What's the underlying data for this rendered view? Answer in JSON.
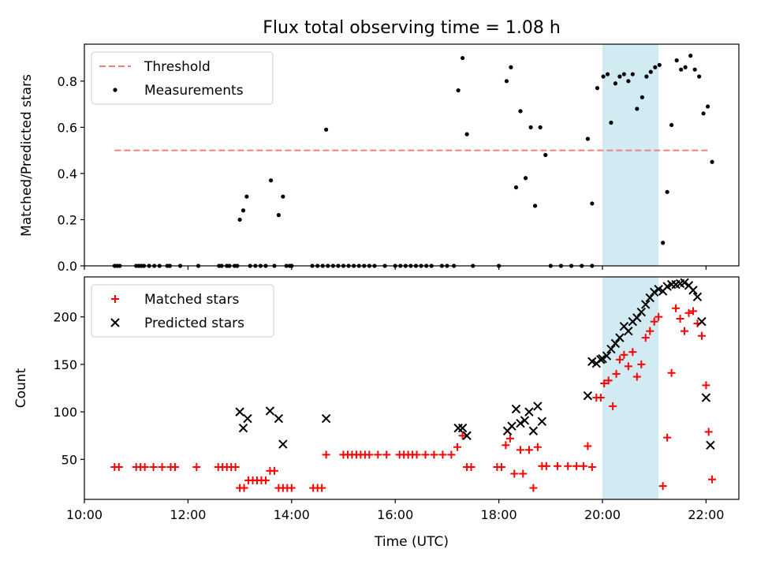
{
  "title": "Flux total observing time = 1.08 h",
  "xlabel": "Time (UTC)",
  "xticks": [
    "10:00",
    "12:00",
    "14:00",
    "16:00",
    "18:00",
    "20:00",
    "22:00"
  ],
  "colors": {
    "threshold": "#f08080",
    "measurement": "#000000",
    "matched": "#ff0000",
    "predicted": "#000000",
    "highlight": "#add8e6"
  },
  "chart_data": [
    {
      "type": "scatter",
      "ylabel": "Matched/Predicted stars",
      "ylim": [
        0,
        0.96
      ],
      "yticks": [
        "0.0",
        "0.2",
        "0.4",
        "0.6",
        "0.8"
      ],
      "highlight_span": [
        "20:00",
        "21:05"
      ],
      "legend": {
        "placement": "top-left",
        "entries": [
          "Threshold",
          "Measurements"
        ]
      },
      "threshold": {
        "name": "Threshold",
        "value": 0.5,
        "x_range": [
          "10:35",
          "22:03"
        ]
      },
      "series": [
        {
          "name": "Measurements",
          "points": [
            [
              "10:35",
              0
            ],
            [
              "10:38",
              0
            ],
            [
              "10:41",
              0
            ],
            [
              "11:00",
              0
            ],
            [
              "11:03",
              0
            ],
            [
              "11:06",
              0
            ],
            [
              "11:09",
              0
            ],
            [
              "11:15",
              0
            ],
            [
              "11:21",
              0
            ],
            [
              "11:27",
              0
            ],
            [
              "11:36",
              0
            ],
            [
              "11:39",
              0
            ],
            [
              "11:51",
              0
            ],
            [
              "12:12",
              0
            ],
            [
              "12:36",
              0
            ],
            [
              "12:39",
              0
            ],
            [
              "12:45",
              0
            ],
            [
              "12:48",
              0
            ],
            [
              "12:54",
              0
            ],
            [
              "12:57",
              0
            ],
            [
              "13:00",
              0.2
            ],
            [
              "13:04",
              0.24
            ],
            [
              "13:08",
              0.3
            ],
            [
              "13:12",
              0
            ],
            [
              "13:18",
              0
            ],
            [
              "13:24",
              0
            ],
            [
              "13:30",
              0
            ],
            [
              "13:36",
              0.37
            ],
            [
              "13:40",
              0
            ],
            [
              "13:45",
              0.22
            ],
            [
              "13:50",
              0.3
            ],
            [
              "13:54",
              0
            ],
            [
              "13:58",
              0
            ],
            [
              "14:00",
              0
            ],
            [
              "14:24",
              0
            ],
            [
              "14:30",
              0
            ],
            [
              "14:36",
              0
            ],
            [
              "14:40",
              0.59
            ],
            [
              "14:42",
              0
            ],
            [
              "14:48",
              0
            ],
            [
              "14:54",
              0
            ],
            [
              "15:00",
              0
            ],
            [
              "15:06",
              0
            ],
            [
              "15:12",
              0
            ],
            [
              "15:18",
              0
            ],
            [
              "15:24",
              0
            ],
            [
              "15:30",
              0
            ],
            [
              "15:36",
              0
            ],
            [
              "15:48",
              0
            ],
            [
              "16:00",
              0
            ],
            [
              "16:06",
              0
            ],
            [
              "16:12",
              0
            ],
            [
              "16:18",
              0
            ],
            [
              "16:24",
              0
            ],
            [
              "16:30",
              0
            ],
            [
              "16:36",
              0
            ],
            [
              "16:42",
              0
            ],
            [
              "16:54",
              0
            ],
            [
              "17:00",
              0
            ],
            [
              "17:08",
              0
            ],
            [
              "17:13",
              0.76
            ],
            [
              "17:18",
              0.9
            ],
            [
              "17:23",
              0.57
            ],
            [
              "17:30",
              0
            ],
            [
              "18:00",
              0
            ],
            [
              "18:09",
              0.8
            ],
            [
              "18:14",
              0.86
            ],
            [
              "18:20",
              0.34
            ],
            [
              "18:25",
              0.67
            ],
            [
              "18:31",
              0.38
            ],
            [
              "18:37",
              0.6
            ],
            [
              "18:42",
              0.26
            ],
            [
              "18:48",
              0.6
            ],
            [
              "18:54",
              0.48
            ],
            [
              "19:00",
              0
            ],
            [
              "19:12",
              0
            ],
            [
              "19:24",
              0
            ],
            [
              "19:36",
              0
            ],
            [
              "19:48",
              0
            ],
            [
              "19:43",
              0.55
            ],
            [
              "19:48",
              0.27
            ],
            [
              "19:54",
              0.77
            ],
            [
              "20:01",
              0.82
            ],
            [
              "20:06",
              0.83
            ],
            [
              "20:10",
              0.62
            ],
            [
              "20:15",
              0.79
            ],
            [
              "20:20",
              0.82
            ],
            [
              "20:25",
              0.83
            ],
            [
              "20:30",
              0.8
            ],
            [
              "20:35",
              0.83
            ],
            [
              "20:40",
              0.68
            ],
            [
              "20:46",
              0.73
            ],
            [
              "20:51",
              0.82
            ],
            [
              "20:56",
              0.84
            ],
            [
              "21:01",
              0.86
            ],
            [
              "21:06",
              0.87
            ],
            [
              "21:10",
              0.1
            ],
            [
              "21:15",
              0.32
            ],
            [
              "21:20",
              0.61
            ],
            [
              "21:26",
              0.89
            ],
            [
              "21:31",
              0.85
            ],
            [
              "21:36",
              0.86
            ],
            [
              "21:42",
              0.91
            ],
            [
              "21:47",
              0.85
            ],
            [
              "21:52",
              0.82
            ],
            [
              "21:57",
              0.66
            ],
            [
              "22:02",
              0.69
            ],
            [
              "22:07",
              0.45
            ]
          ]
        }
      ]
    },
    {
      "type": "scatter",
      "ylabel": "Count",
      "ylim": [
        8,
        242
      ],
      "yticks": [
        "50",
        "100",
        "150",
        "200"
      ],
      "highlight_span": [
        "20:00",
        "21:05"
      ],
      "legend": {
        "placement": "top-left",
        "entries": [
          "Matched stars",
          "Predicted stars"
        ]
      },
      "series": [
        {
          "name": "Matched stars",
          "marker": "+",
          "points": [
            [
              "10:35",
              42
            ],
            [
              "10:40",
              42
            ],
            [
              "11:00",
              42
            ],
            [
              "11:05",
              42
            ],
            [
              "11:10",
              42
            ],
            [
              "11:20",
              42
            ],
            [
              "11:30",
              42
            ],
            [
              "11:40",
              42
            ],
            [
              "11:45",
              42
            ],
            [
              "12:10",
              42
            ],
            [
              "12:35",
              42
            ],
            [
              "12:40",
              42
            ],
            [
              "12:45",
              42
            ],
            [
              "12:50",
              42
            ],
            [
              "12:55",
              42
            ],
            [
              "13:00",
              20
            ],
            [
              "13:05",
              20
            ],
            [
              "13:10",
              28
            ],
            [
              "13:15",
              28
            ],
            [
              "13:20",
              28
            ],
            [
              "13:25",
              28
            ],
            [
              "13:30",
              28
            ],
            [
              "13:35",
              38
            ],
            [
              "13:40",
              38
            ],
            [
              "13:45",
              20
            ],
            [
              "13:50",
              20
            ],
            [
              "13:55",
              20
            ],
            [
              "14:00",
              20
            ],
            [
              "14:25",
              20
            ],
            [
              "14:30",
              20
            ],
            [
              "14:35",
              20
            ],
            [
              "14:40",
              55
            ],
            [
              "15:00",
              55
            ],
            [
              "15:05",
              55
            ],
            [
              "15:10",
              55
            ],
            [
              "15:15",
              55
            ],
            [
              "15:20",
              55
            ],
            [
              "15:25",
              55
            ],
            [
              "15:30",
              55
            ],
            [
              "15:40",
              55
            ],
            [
              "15:50",
              55
            ],
            [
              "16:05",
              55
            ],
            [
              "16:10",
              55
            ],
            [
              "16:15",
              55
            ],
            [
              "16:20",
              55
            ],
            [
              "16:25",
              55
            ],
            [
              "16:35",
              55
            ],
            [
              "16:45",
              55
            ],
            [
              "16:55",
              55
            ],
            [
              "17:05",
              55
            ],
            [
              "17:12",
              63
            ],
            [
              "17:18",
              75
            ],
            [
              "17:23",
              42
            ],
            [
              "17:28",
              42
            ],
            [
              "17:58",
              42
            ],
            [
              "18:03",
              42
            ],
            [
              "18:08",
              65
            ],
            [
              "18:13",
              72
            ],
            [
              "18:18",
              35
            ],
            [
              "18:25",
              60
            ],
            [
              "18:28",
              35
            ],
            [
              "18:35",
              60
            ],
            [
              "18:40",
              20
            ],
            [
              "18:45",
              63
            ],
            [
              "18:50",
              43
            ],
            [
              "18:55",
              43
            ],
            [
              "19:08",
              43
            ],
            [
              "19:20",
              43
            ],
            [
              "19:30",
              43
            ],
            [
              "19:38",
              43
            ],
            [
              "19:43",
              64
            ],
            [
              "19:48",
              42
            ],
            [
              "19:53",
              115
            ],
            [
              "19:58",
              115
            ],
            [
              "20:02",
              130
            ],
            [
              "20:07",
              133
            ],
            [
              "20:12",
              106
            ],
            [
              "20:16",
              140
            ],
            [
              "20:20",
              155
            ],
            [
              "20:25",
              160
            ],
            [
              "20:30",
              148
            ],
            [
              "20:35",
              163
            ],
            [
              "20:40",
              137
            ],
            [
              "20:45",
              150
            ],
            [
              "20:50",
              178
            ],
            [
              "20:55",
              185
            ],
            [
              "21:00",
              195
            ],
            [
              "21:05",
              200
            ],
            [
              "21:10",
              22
            ],
            [
              "21:15",
              73
            ],
            [
              "21:20",
              141
            ],
            [
              "21:25",
              209
            ],
            [
              "21:30",
              198
            ],
            [
              "21:35",
              185
            ],
            [
              "21:40",
              204
            ],
            [
              "21:45",
              206
            ],
            [
              "21:50",
              193
            ],
            [
              "21:55",
              180
            ],
            [
              "22:00",
              128
            ],
            [
              "22:03",
              79
            ],
            [
              "22:07",
              29
            ]
          ]
        },
        {
          "name": "Predicted stars",
          "marker": "x",
          "points": [
            [
              "13:00",
              100
            ],
            [
              "13:04",
              83
            ],
            [
              "13:09",
              93
            ],
            [
              "13:35",
              101
            ],
            [
              "13:45",
              93
            ],
            [
              "13:50",
              66
            ],
            [
              "14:40",
              93
            ],
            [
              "17:13",
              83
            ],
            [
              "17:18",
              83
            ],
            [
              "17:23",
              75
            ],
            [
              "18:10",
              80
            ],
            [
              "18:15",
              85
            ],
            [
              "18:20",
              103
            ],
            [
              "18:25",
              88
            ],
            [
              "18:30",
              91
            ],
            [
              "18:35",
              100
            ],
            [
              "18:40",
              80
            ],
            [
              "18:45",
              106
            ],
            [
              "18:50",
              90
            ],
            [
              "19:43",
              117
            ],
            [
              "19:48",
              153
            ],
            [
              "19:53",
              151
            ],
            [
              "19:58",
              155
            ],
            [
              "20:00",
              156
            ],
            [
              "20:05",
              159
            ],
            [
              "20:10",
              166
            ],
            [
              "20:15",
              172
            ],
            [
              "20:20",
              178
            ],
            [
              "20:25",
              190
            ],
            [
              "20:30",
              185
            ],
            [
              "20:35",
              195
            ],
            [
              "20:40",
              199
            ],
            [
              "20:45",
              205
            ],
            [
              "20:50",
              213
            ],
            [
              "20:55",
              220
            ],
            [
              "21:00",
              226
            ],
            [
              "21:05",
              229
            ],
            [
              "21:10",
              227
            ],
            [
              "21:15",
              232
            ],
            [
              "21:20",
              234
            ],
            [
              "21:25",
              234
            ],
            [
              "21:30",
              235
            ],
            [
              "21:35",
              236
            ],
            [
              "21:40",
              233
            ],
            [
              "21:45",
              228
            ],
            [
              "21:50",
              221
            ],
            [
              "21:55",
              195
            ],
            [
              "22:00",
              115
            ],
            [
              "22:05",
              65
            ]
          ]
        }
      ]
    }
  ]
}
